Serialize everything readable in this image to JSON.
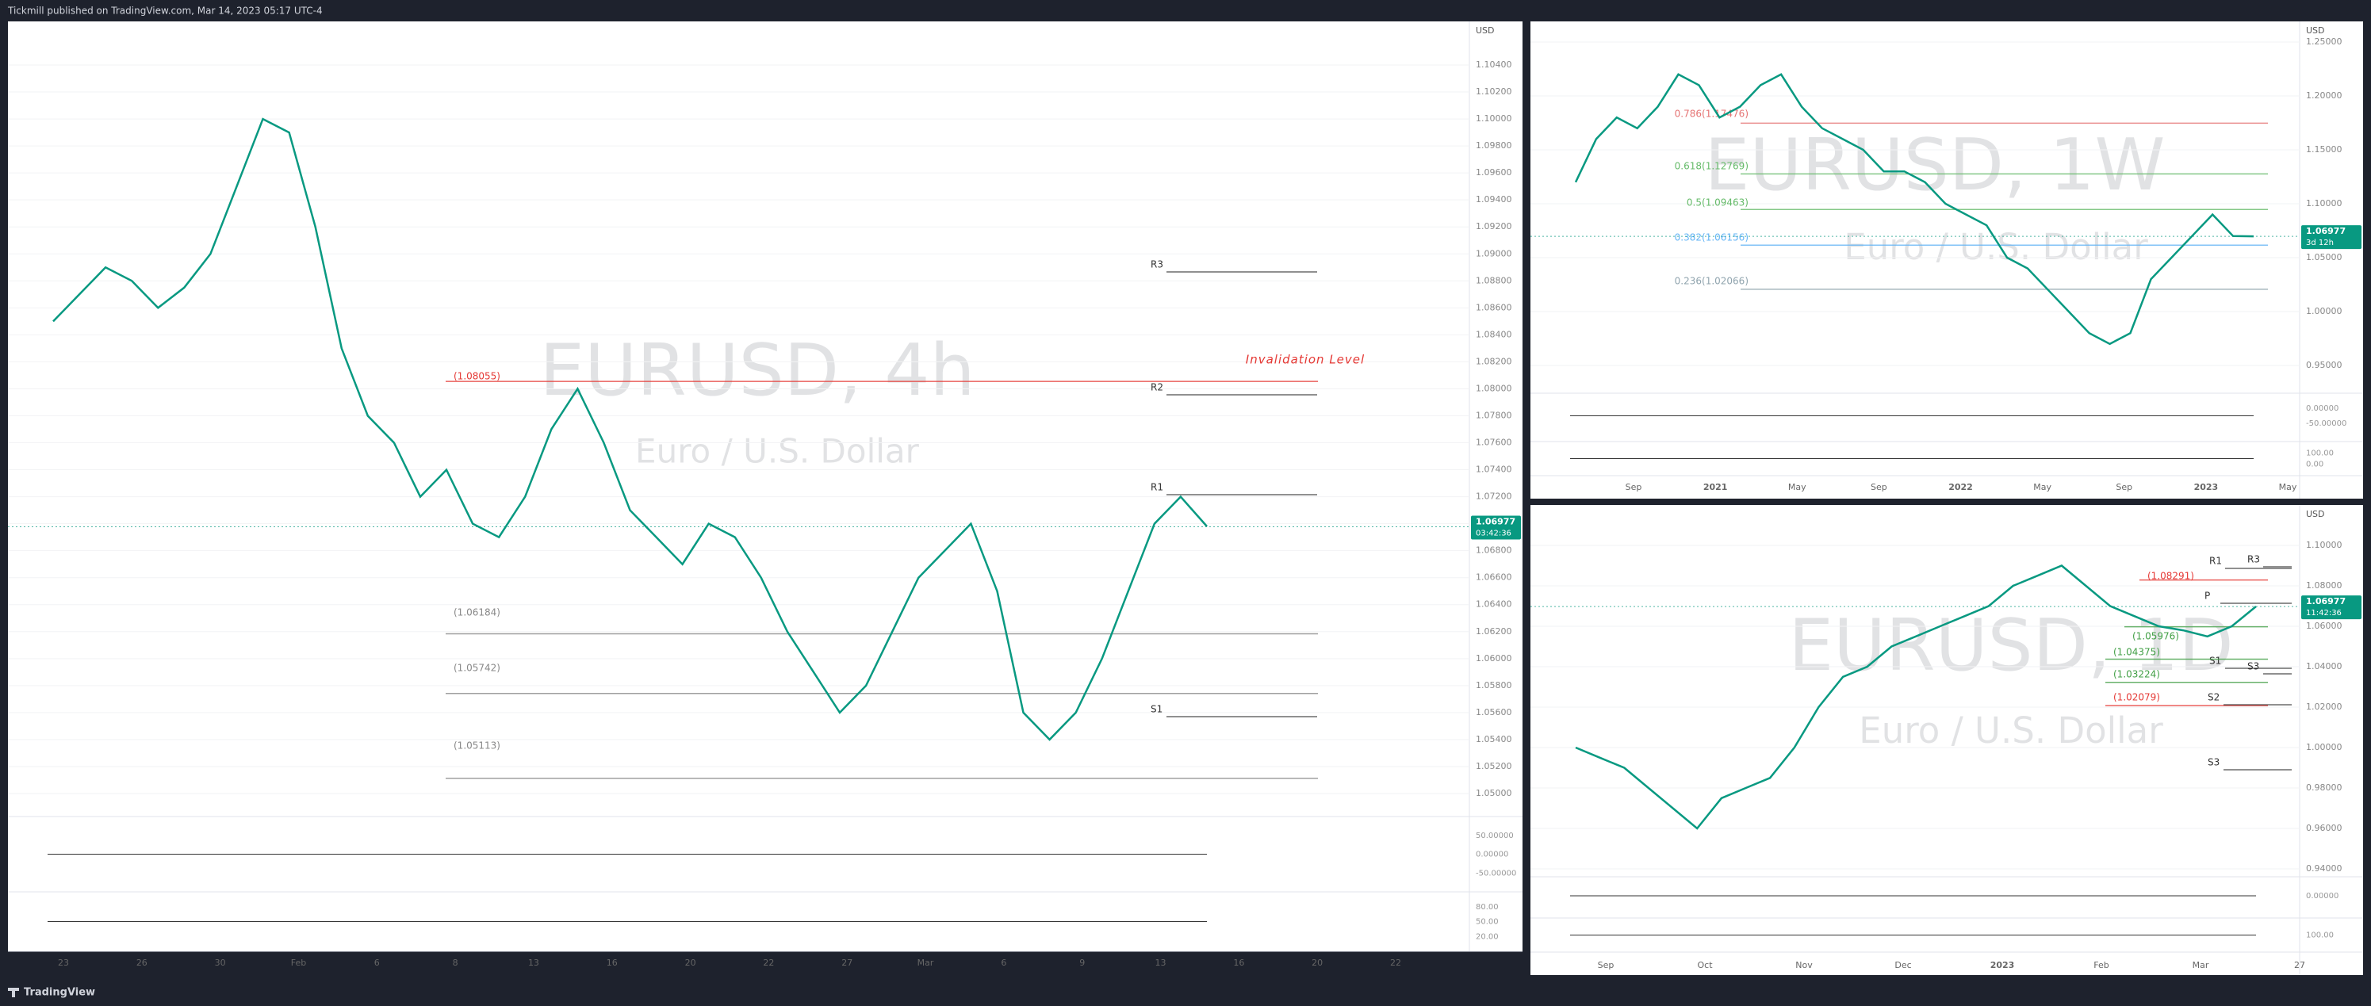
{
  "header": {
    "publisher": "Tickmill published on TradingView.com, Mar 14, 2023 05:17 UTC-4"
  },
  "footer": {
    "brand": "TradingView"
  },
  "panels": [
    {
      "symbol": "EURUSD, 4h",
      "description": "Euro / U.S. Dollar",
      "currency": "USD",
      "price_labels": [
        "1.10400",
        "1.10200",
        "1.10000",
        "1.09800",
        "1.09600",
        "1.09400",
        "1.09200",
        "1.09000",
        "1.08800",
        "1.08600",
        "1.08400",
        "1.08200",
        "1.08000",
        "1.07800",
        "1.07600",
        "1.07400",
        "1.07200",
        "1.07000",
        "1.06800",
        "1.06600",
        "1.06400",
        "1.06200",
        "1.06000",
        "1.05800",
        "1.05600",
        "1.05400",
        "1.05200",
        "1.05000"
      ],
      "time_labels": [
        "23",
        "26",
        "30",
        "Feb",
        "6",
        "8",
        "13",
        "16",
        "20",
        "22",
        "27",
        "Mar",
        "6",
        "9",
        "13",
        "16",
        "20",
        "22"
      ],
      "indicator_labels": [
        "50.00000",
        "0.00000",
        "-50.00000",
        "80.00",
        "50.00",
        "20.00"
      ],
      "annotations": [
        "Invalidation Level",
        "(1.08055)",
        "R3",
        "R2",
        "R1",
        "S1",
        "(1.06184)",
        "(1.05742)",
        "(1.05113)"
      ],
      "price_tag": "1.06977",
      "countdown": "03:42:36",
      "closes": [
        1.085,
        1.087,
        1.089,
        1.088,
        1.086,
        1.0875,
        1.09,
        1.095,
        1.1,
        1.099,
        1.092,
        1.083,
        1.078,
        1.076,
        1.072,
        1.074,
        1.07,
        1.069,
        1.072,
        1.077,
        1.08,
        1.076,
        1.071,
        1.069,
        1.067,
        1.07,
        1.069,
        1.066,
        1.062,
        1.059,
        1.056,
        1.058,
        1.062,
        1.066,
        1.068,
        1.07,
        1.065,
        1.056,
        1.054,
        1.056,
        1.06,
        1.065,
        1.07,
        1.072,
        1.0698
      ]
    },
    {
      "symbol": "EURUSD, 1W",
      "description": "Euro / U.S. Dollar",
      "currency": "USD",
      "price_labels": [
        "1.25000",
        "1.20000",
        "1.15000",
        "1.10000",
        "1.05000",
        "1.00000",
        "0.95000"
      ],
      "time_labels": [
        "Sep",
        "2021",
        "May",
        "Sep",
        "2022",
        "May",
        "Sep",
        "2023",
        "May"
      ],
      "indicator_labels": [
        "0.00000",
        "-50.00000",
        "100.00",
        "0.00"
      ],
      "annotations": [
        "0.786(1.17476)",
        "0.618(1.12769)",
        "0.5(1.09463)",
        "0.382(1.06156)",
        "0.236(1.02066)"
      ],
      "price_tag": "1.06977",
      "countdown": "3d 12h",
      "closes": [
        1.12,
        1.16,
        1.18,
        1.17,
        1.19,
        1.22,
        1.21,
        1.18,
        1.19,
        1.21,
        1.22,
        1.19,
        1.17,
        1.16,
        1.15,
        1.13,
        1.13,
        1.12,
        1.1,
        1.09,
        1.08,
        1.05,
        1.04,
        1.02,
        1.0,
        0.98,
        0.97,
        0.98,
        1.03,
        1.05,
        1.07,
        1.09,
        1.07,
        1.0698
      ]
    },
    {
      "symbol": "EURUSD, 1D",
      "description": "Euro / U.S. Dollar",
      "currency": "USD",
      "price_labels": [
        "1.10000",
        "1.08000",
        "1.06000",
        "1.04000",
        "1.02000",
        "1.00000",
        "0.98000",
        "0.96000",
        "0.94000"
      ],
      "time_labels": [
        "Sep",
        "Oct",
        "Nov",
        "Dec",
        "2023",
        "Feb",
        "Mar",
        "27"
      ],
      "indicator_labels": [
        "0.00000",
        "100.00"
      ],
      "annotations": [
        "R1",
        "R3",
        "P",
        "S1",
        "S3",
        "(1.08291)",
        "(1.05976)",
        "(1.04375)",
        "(1.03224)",
        "(1.02079)",
        "S2",
        "S3"
      ],
      "price_tag": "1.06977",
      "countdown": "11:42:36",
      "closes": [
        1.0,
        0.995,
        0.99,
        0.98,
        0.97,
        0.96,
        0.975,
        0.98,
        0.985,
        1.0,
        1.02,
        1.035,
        1.04,
        1.05,
        1.055,
        1.06,
        1.065,
        1.07,
        1.08,
        1.085,
        1.09,
        1.08,
        1.07,
        1.065,
        1.06,
        1.058,
        1.055,
        1.06,
        1.0698
      ]
    }
  ]
}
